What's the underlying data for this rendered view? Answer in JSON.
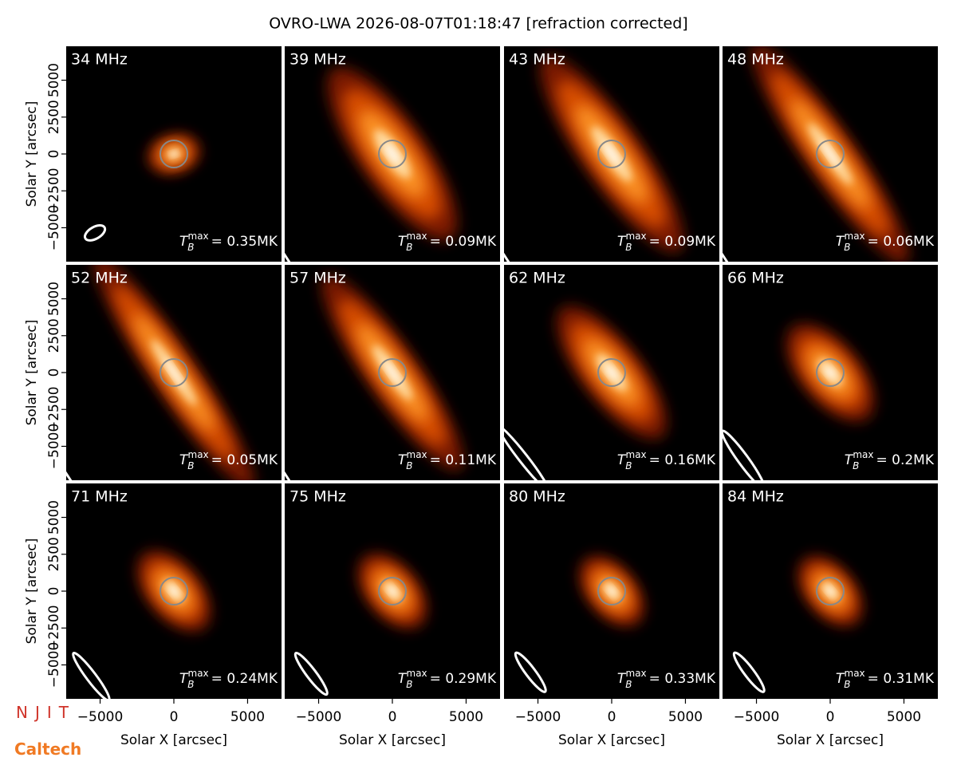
{
  "chart_data": {
    "type": "image-grid",
    "title": "OVRO-LWA 2026-08-07T01:18:47 [refraction corrected]",
    "xlabel": "Solar X [arcsec]",
    "ylabel": "Solar Y [arcsec]",
    "xlim": [
      -7300,
      7300
    ],
    "ylim": [
      -7300,
      7300
    ],
    "xticks": [
      {
        "value": -5000,
        "label": "−5000"
      },
      0,
      5000
    ],
    "yticks": [
      {
        "value": -5000,
        "label": "−5000"
      },
      {
        "value": -2500,
        "label": "−2500"
      },
      0,
      2500,
      5000
    ],
    "columns": 4,
    "panels": [
      {
        "title": "34 MHz",
        "tb": {
          "symbol": "T",
          "sub": "B",
          "sup": "max",
          "text": "= 0.35MK"
        },
        "source": {
          "major": 3600,
          "minor": 2600,
          "angle": 15
        },
        "beam": {
          "x": -5350,
          "y": -5350,
          "major": 1500,
          "minor": 800,
          "angle": 30
        }
      },
      {
        "title": "39 MHz",
        "tb": {
          "symbol": "T",
          "sub": "B",
          "sup": "max",
          "text": "= 0.09MK"
        },
        "source": {
          "major": 14000,
          "minor": 4500,
          "angle": -55
        },
        "beam": {
          "x": -7300,
          "y": -7300,
          "major": 10000,
          "minor": 500,
          "angle": -57
        }
      },
      {
        "title": "43 MHz",
        "tb": {
          "symbol": "T",
          "sub": "B",
          "sup": "max",
          "text": "= 0.09MK"
        },
        "source": {
          "major": 16000,
          "minor": 4000,
          "angle": -55
        },
        "beam": {
          "x": -7300,
          "y": -7300,
          "major": 10000,
          "minor": 500,
          "angle": -57
        }
      },
      {
        "title": "48 MHz",
        "tb": {
          "symbol": "T",
          "sub": "B",
          "sup": "max",
          "text": "= 0.06MK"
        },
        "source": {
          "major": 18000,
          "minor": 3300,
          "angle": -55
        },
        "beam": {
          "x": -7300,
          "y": -7300,
          "major": 10000,
          "minor": 500,
          "angle": -57
        }
      },
      {
        "title": "52 MHz",
        "tb": {
          "symbol": "T",
          "sub": "B",
          "sup": "max",
          "text": "= 0.05MK"
        },
        "source": {
          "major": 19000,
          "minor": 3000,
          "angle": -56
        },
        "beam": {
          "x": -7300,
          "y": -7300,
          "major": 10000,
          "minor": 500,
          "angle": -57
        }
      },
      {
        "title": "57 MHz",
        "tb": {
          "symbol": "T",
          "sub": "B",
          "sup": "max",
          "text": "= 0.11MK"
        },
        "source": {
          "major": 16000,
          "minor": 3500,
          "angle": -55
        },
        "beam": {
          "x": -7300,
          "y": -7300,
          "major": 10000,
          "minor": 500,
          "angle": -57
        }
      },
      {
        "title": "62 MHz",
        "tb": {
          "symbol": "T",
          "sub": "B",
          "sup": "max",
          "text": "= 0.16MK"
        },
        "source": {
          "major": 11000,
          "minor": 4000,
          "angle": -52
        },
        "beam": {
          "x": -6000,
          "y": -5800,
          "major": 5500,
          "minor": 600,
          "angle": -52
        }
      },
      {
        "title": "66 MHz",
        "tb": {
          "symbol": "T",
          "sub": "B",
          "sup": "max",
          "text": "= 0.2MK"
        },
        "source": {
          "major": 8000,
          "minor": 4000,
          "angle": -50
        },
        "beam": {
          "x": -5900,
          "y": -5900,
          "major": 4800,
          "minor": 700,
          "angle": -54
        }
      },
      {
        "title": "71 MHz",
        "tb": {
          "symbol": "T",
          "sub": "B",
          "sup": "max",
          "text": "= 0.24MK"
        },
        "source": {
          "major": 6500,
          "minor": 3600,
          "angle": -50
        },
        "beam": {
          "x": -5600,
          "y": -5800,
          "major": 4000,
          "minor": 650,
          "angle": -53
        }
      },
      {
        "title": "75 MHz",
        "tb": {
          "symbol": "T",
          "sub": "B",
          "sup": "max",
          "text": "= 0.29MK"
        },
        "source": {
          "major": 6000,
          "minor": 3500,
          "angle": -50
        },
        "beam": {
          "x": -5500,
          "y": -5600,
          "major": 3500,
          "minor": 650,
          "angle": -53
        }
      },
      {
        "title": "80 MHz",
        "tb": {
          "symbol": "T",
          "sub": "B",
          "sup": "max",
          "text": "= 0.33MK"
        },
        "source": {
          "major": 5600,
          "minor": 3300,
          "angle": -50
        },
        "beam": {
          "x": -5500,
          "y": -5500,
          "major": 3300,
          "minor": 650,
          "angle": -53
        }
      },
      {
        "title": "84 MHz",
        "tb": {
          "symbol": "T",
          "sub": "B",
          "sup": "max",
          "text": "= 0.31MK"
        },
        "source": {
          "major": 5600,
          "minor": 3300,
          "angle": -50
        },
        "beam": {
          "x": -5500,
          "y": -5500,
          "major": 3300,
          "minor": 650,
          "angle": -53
        }
      }
    ]
  },
  "logos": [
    "NJIT",
    "Caltech"
  ]
}
